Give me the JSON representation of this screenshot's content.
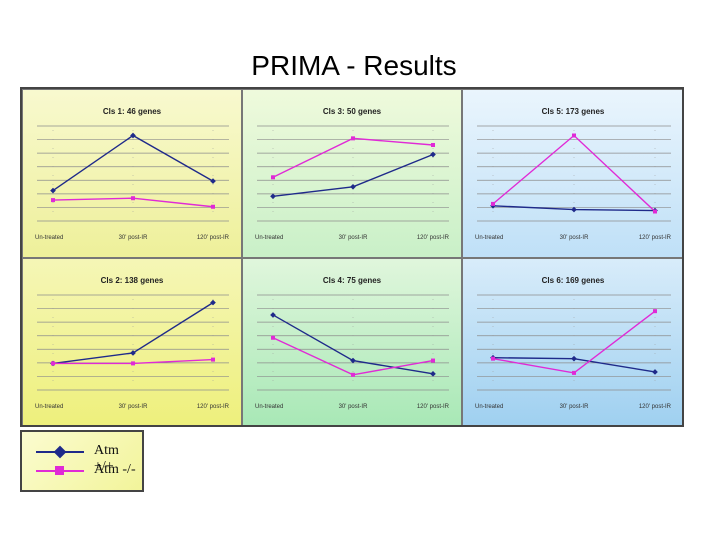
{
  "slide_title": "PRIMA - Results",
  "colors": {
    "atm_plus": "#1f2a8a",
    "atm_minus": "#e02ad6",
    "panel_bg_yellow": "#f6f8b4",
    "panel_bg_green": "#dff6dc",
    "panel_bg_blue": "#d8ecfa"
  },
  "legend": {
    "items": [
      {
        "label": "Atm +/+",
        "color": "#1f2a8a",
        "marker": "diamond"
      },
      {
        "label": "Atm -/-",
        "color": "#e02ad6",
        "marker": "square"
      }
    ]
  },
  "chart_data": [
    {
      "type": "line",
      "title": "Cls 1: 46 genes",
      "categories": [
        "Un-treated",
        "30' post-IR",
        "120' post-IR"
      ],
      "ylim": [
        0,
        10
      ],
      "series": [
        {
          "name": "Atm +/+",
          "values": [
            3.2,
            9.0,
            4.2
          ]
        },
        {
          "name": "Atm -/-",
          "values": [
            2.2,
            2.4,
            1.5
          ]
        }
      ]
    },
    {
      "type": "line",
      "title": "Cls 3: 50 genes",
      "categories": [
        "Un-treated",
        "30' post-IR",
        "120' post-IR"
      ],
      "ylim": [
        0,
        10
      ],
      "series": [
        {
          "name": "Atm +/+",
          "values": [
            2.6,
            3.6,
            7.0
          ]
        },
        {
          "name": "Atm -/-",
          "values": [
            4.6,
            8.7,
            8.0
          ]
        }
      ]
    },
    {
      "type": "line",
      "title": "Cls 5: 173 genes",
      "categories": [
        "Un-treated",
        "30' post-IR",
        "120' post-IR"
      ],
      "ylim": [
        0,
        10
      ],
      "series": [
        {
          "name": "Atm +/+",
          "values": [
            1.6,
            1.2,
            1.1
          ]
        },
        {
          "name": "Atm -/-",
          "values": [
            1.8,
            9.0,
            1.0
          ]
        }
      ]
    },
    {
      "type": "line",
      "title": "Cls 2: 138 genes",
      "categories": [
        "Un-treated",
        "30' post-IR",
        "120' post-IR"
      ],
      "ylim": [
        0,
        10
      ],
      "series": [
        {
          "name": "Atm +/+",
          "values": [
            2.8,
            3.9,
            9.2
          ]
        },
        {
          "name": "Atm -/-",
          "values": [
            2.8,
            2.8,
            3.2
          ]
        }
      ]
    },
    {
      "type": "line",
      "title": "Cls 4: 75 genes",
      "categories": [
        "Un-treated",
        "30' post-IR",
        "120' post-IR"
      ],
      "ylim": [
        0,
        10
      ],
      "series": [
        {
          "name": "Atm +/+",
          "values": [
            7.9,
            3.1,
            1.7
          ]
        },
        {
          "name": "Atm -/-",
          "values": [
            5.5,
            1.6,
            3.1
          ]
        }
      ]
    },
    {
      "type": "line",
      "title": "Cls 6: 169 genes",
      "categories": [
        "Un-treated",
        "30' post-IR",
        "120' post-IR"
      ],
      "ylim": [
        0,
        10
      ],
      "series": [
        {
          "name": "Atm +/+",
          "values": [
            3.4,
            3.3,
            1.9
          ]
        },
        {
          "name": "Atm -/-",
          "values": [
            3.3,
            1.8,
            8.3
          ]
        }
      ]
    }
  ]
}
